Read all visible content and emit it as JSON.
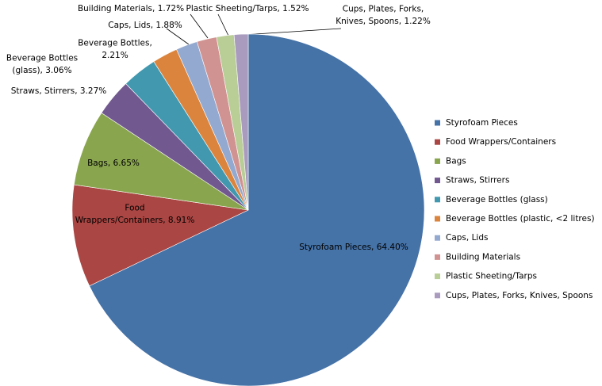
{
  "chart_data": {
    "type": "pie",
    "categories": [
      "Styrofoam Pieces",
      "Food Wrappers/Containers",
      "Bags",
      "Straws, Stirrers",
      "Beverage Bottles (glass)",
      "Beverage Bottles (plastic, <2 litres)",
      "Caps, Lids",
      "Building Materials",
      "Plastic Sheeting/Tarps",
      "Cups, Plates, Forks, Knives, Spoons"
    ],
    "values": [
      64.4,
      8.91,
      6.65,
      3.27,
      3.06,
      2.21,
      1.88,
      1.72,
      1.52,
      1.22
    ],
    "value_labels": [
      "Styrofoam Pieces, 64.40%",
      "Food\nWrappers/Containers, 8.91%",
      "Bags, 6.65%",
      "Straws, Stirrers, 3.27%",
      "Beverage Bottles\n(glass), 3.06%",
      "Beverage Bottles,\n2.21%",
      "Caps, Lids, 1.88%",
      "Building Materials, 1.72%",
      "Plastic Sheeting/Tarps, 1.52%",
      "Cups, Plates, Forks,\nKnives, Spoons, 1.22%"
    ],
    "colors": [
      "#4572a7",
      "#aa4643",
      "#89a54e",
      "#71588f",
      "#4198af",
      "#db843d",
      "#93a9cf",
      "#d19392",
      "#b9cd96",
      "#a99bbd"
    ],
    "legend": "right"
  }
}
